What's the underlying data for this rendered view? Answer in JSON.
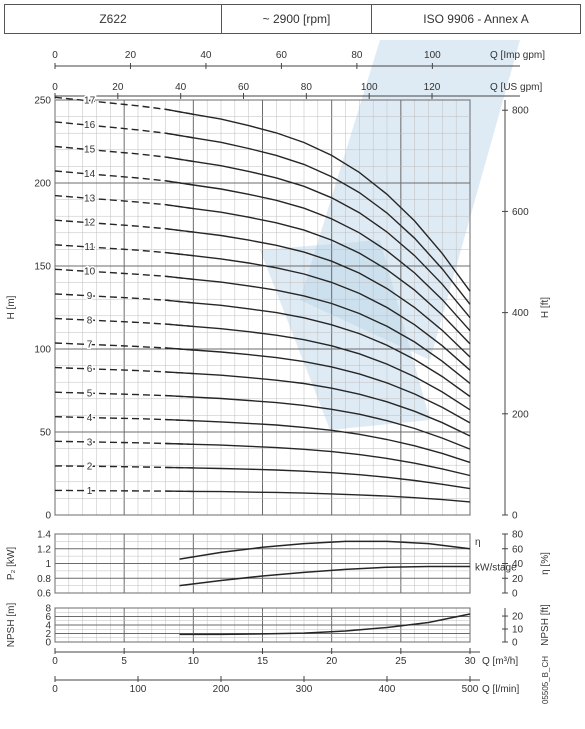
{
  "header": {
    "model": "Z622",
    "speed": "~ 2900 [rpm]",
    "standard": "ISO 9906 - Annex A"
  },
  "colors": {
    "curve": "#262626",
    "grid_major": "#6b6b6b",
    "grid_minor": "#bdbdbd",
    "watermark": "#b7d2e6"
  },
  "chart_data": [
    {
      "type": "line",
      "name": "H",
      "ylabel_left": "H [m]",
      "ylabel_right": "H [ft]",
      "x_label": "Q [m³/h]",
      "xlim": [
        0,
        30
      ],
      "ylim": [
        0,
        250
      ],
      "y_ticks": [
        0,
        50,
        100,
        150,
        200,
        250
      ],
      "y_ticks_right": [
        0,
        200,
        400,
        600,
        800
      ],
      "top_axes": [
        {
          "label": "Q [Imp gpm]",
          "ticks": [
            0,
            20,
            40,
            60,
            80,
            100
          ]
        },
        {
          "label": "Q [US gpm]",
          "ticks": [
            0,
            20,
            40,
            60,
            80,
            100,
            120
          ]
        }
      ],
      "x": [
        0,
        2,
        4,
        6,
        8,
        10,
        12,
        14,
        16,
        18,
        20,
        22,
        24,
        26,
        28,
        30
      ],
      "dashed_until_x": 9,
      "series": [
        {
          "name": "1",
          "values": [
            14.8,
            14.7,
            14.6,
            14.5,
            14.4,
            14.2,
            14.1,
            13.8,
            13.6,
            13.2,
            12.7,
            12.1,
            11.4,
            10.4,
            9.3,
            7.9
          ]
        },
        {
          "name": "2",
          "values": [
            29.6,
            29.4,
            29.2,
            29.0,
            28.7,
            28.4,
            28.0,
            27.6,
            27.1,
            26.4,
            25.5,
            24.3,
            22.7,
            20.8,
            18.5,
            15.9
          ]
        },
        {
          "name": "3",
          "values": [
            44.4,
            44.1,
            43.8,
            43.5,
            43.1,
            42.6,
            42.1,
            41.4,
            40.6,
            39.6,
            38.2,
            36.4,
            34.1,
            31.2,
            27.8,
            23.8
          ]
        },
        {
          "name": "4",
          "values": [
            59.2,
            58.8,
            58.4,
            58.0,
            57.5,
            56.8,
            56.1,
            55.2,
            54.2,
            52.8,
            51.0,
            48.6,
            45.5,
            41.7,
            37.1,
            31.7
          ]
        },
        {
          "name": "5",
          "values": [
            74.0,
            73.5,
            73.0,
            72.5,
            71.9,
            71.0,
            70.2,
            69.0,
            67.7,
            66.0,
            63.7,
            60.7,
            56.8,
            52.1,
            46.3,
            39.7
          ]
        },
        {
          "name": "6",
          "values": [
            88.8,
            88.2,
            87.6,
            87.0,
            86.2,
            85.2,
            84.2,
            82.8,
            81.2,
            79.2,
            76.4,
            72.8,
            68.2,
            62.5,
            55.6,
            47.6
          ]
        },
        {
          "name": "7",
          "values": [
            103.6,
            102.9,
            102.2,
            101.5,
            100.6,
            99.4,
            98.2,
            96.6,
            94.8,
            92.4,
            89.2,
            85.0,
            79.6,
            72.9,
            64.8,
            55.5
          ]
        },
        {
          "name": "8",
          "values": [
            118.4,
            117.6,
            116.8,
            116.0,
            115.0,
            113.6,
            112.2,
            110.4,
            108.3,
            105.6,
            101.9,
            97.1,
            90.9,
            83.3,
            74.1,
            63.4
          ]
        },
        {
          "name": "9",
          "values": [
            133.2,
            132.3,
            131.4,
            130.5,
            129.4,
            127.8,
            126.3,
            124.2,
            121.9,
            118.8,
            114.6,
            109.3,
            102.3,
            93.7,
            83.4,
            71.4
          ]
        },
        {
          "name": "10",
          "values": [
            148.0,
            147.0,
            146.0,
            145.0,
            143.8,
            142.0,
            140.3,
            138.0,
            135.4,
            132.0,
            127.4,
            121.4,
            113.7,
            104.2,
            92.6,
            79.3
          ]
        },
        {
          "name": "11",
          "values": [
            162.8,
            161.7,
            160.6,
            159.5,
            158.1,
            156.2,
            154.3,
            151.8,
            148.9,
            145.2,
            140.1,
            133.5,
            125.0,
            114.6,
            101.9,
            87.2
          ]
        },
        {
          "name": "12",
          "values": [
            177.6,
            176.4,
            175.2,
            174.0,
            172.5,
            170.4,
            168.4,
            165.6,
            162.5,
            158.4,
            152.9,
            145.7,
            136.4,
            125.0,
            111.2,
            95.2
          ]
        },
        {
          "name": "13",
          "values": [
            192.4,
            191.1,
            189.8,
            188.5,
            186.9,
            184.6,
            182.4,
            179.4,
            176.0,
            171.6,
            165.6,
            157.8,
            147.8,
            135.4,
            120.4,
            103.1
          ]
        },
        {
          "name": "14",
          "values": [
            207.2,
            205.8,
            204.4,
            203.0,
            201.3,
            198.8,
            196.4,
            193.2,
            189.6,
            184.8,
            178.4,
            170.0,
            159.1,
            145.8,
            129.7,
            111.0
          ]
        },
        {
          "name": "15",
          "values": [
            222.0,
            220.5,
            219.0,
            217.5,
            215.6,
            213.0,
            210.4,
            207.0,
            203.1,
            198.0,
            191.1,
            182.1,
            170.5,
            156.2,
            139.0,
            118.9
          ]
        },
        {
          "name": "16",
          "values": [
            236.8,
            235.2,
            233.6,
            232.0,
            230.0,
            227.2,
            224.5,
            220.8,
            216.6,
            211.2,
            203.8,
            194.2,
            181.9,
            166.7,
            148.2,
            126.9
          ]
        },
        {
          "name": "17",
          "values": [
            251.6,
            249.9,
            248.2,
            246.5,
            244.4,
            241.4,
            238.5,
            234.6,
            230.2,
            224.4,
            216.6,
            206.4,
            193.2,
            177.1,
            157.5,
            134.8
          ]
        }
      ]
    },
    {
      "type": "line",
      "name": "P2 / efficiency",
      "ylabel_left": "P₂ [kW]",
      "ylabel_right": "η [%]",
      "ylim": [
        0.6,
        1.4
      ],
      "y_ticks": [
        0.6,
        0.8,
        1.0,
        1.2,
        1.4
      ],
      "y_ticks_right": [
        0,
        20,
        40,
        60,
        80
      ],
      "x": [
        9,
        12,
        15,
        18,
        21,
        24,
        27,
        30
      ],
      "series": [
        {
          "name": "η",
          "values": [
            1.06,
            1.15,
            1.22,
            1.27,
            1.3,
            1.3,
            1.27,
            1.2
          ]
        },
        {
          "name": "kW/stage",
          "values": [
            0.7,
            0.77,
            0.83,
            0.88,
            0.92,
            0.95,
            0.96,
            0.96
          ]
        }
      ]
    },
    {
      "type": "line",
      "name": "NPSH",
      "ylabel_left": "NPSH [m]",
      "ylabel_right": "NPSH [ft]",
      "ylim": [
        0,
        8
      ],
      "y_ticks": [
        0,
        2,
        4,
        6,
        8
      ],
      "y_ticks_right": [
        0,
        10,
        20
      ],
      "x_ticks": [
        0,
        5,
        10,
        15,
        20,
        25,
        30
      ],
      "x_label": "Q [m³/h]",
      "bottom_axis": {
        "label": "Q [l/min]",
        "ticks": [
          0,
          100,
          200,
          300,
          400,
          500
        ]
      },
      "x": [
        9,
        12,
        15,
        18,
        21,
        24,
        27,
        30
      ],
      "series": [
        {
          "name": "NPSH",
          "values": [
            1.8,
            1.8,
            1.9,
            2.1,
            2.6,
            3.4,
            4.6,
            6.6
          ]
        }
      ]
    }
  ],
  "footnote": "05505_B_CH"
}
